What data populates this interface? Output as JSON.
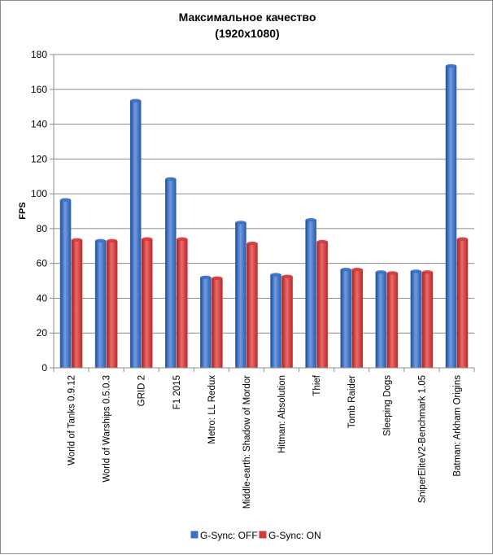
{
  "chart_data": {
    "type": "bar",
    "title": "Максимальное качество",
    "subtitle": "(1920x1080)",
    "xlabel": "",
    "ylabel": "FPS",
    "ylim": [
      0,
      180
    ],
    "yticks": [
      0,
      20,
      40,
      60,
      80,
      100,
      120,
      140,
      160,
      180
    ],
    "grid": true,
    "legend_position": "bottom",
    "categories": [
      "World of Tanks 0.9.12",
      "World of Warships 0.5.0.3",
      "GRID 2",
      "F1 2015",
      "Metro: LL Redux",
      "Middle-earth: Shadow of Mordor",
      "Hitman: Absolution",
      "Thief",
      "Tomb Raider",
      "Sleeping Dogs",
      "SniperEliteV2-Benchmark 1.05",
      "Batman: Arkham Origins"
    ],
    "series": [
      {
        "name": "G-Sync: OFF",
        "color": "#3a6fc4",
        "values": [
          96.5,
          73,
          153.5,
          108.5,
          52,
          83.5,
          53.5,
          85,
          56.5,
          55,
          55.5,
          173.5
        ]
      },
      {
        "name": "G-Sync: ON",
        "color": "#d33b3b",
        "values": [
          73.5,
          73,
          74,
          74,
          51.5,
          71.5,
          52.5,
          72.5,
          56.5,
          54.5,
          55,
          74
        ]
      }
    ]
  }
}
